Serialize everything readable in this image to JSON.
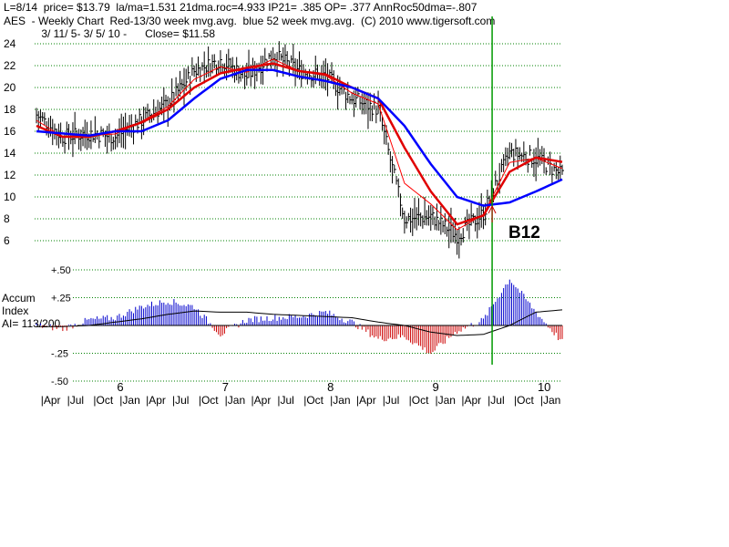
{
  "header": {
    "line1": "L=8/14  price= $13.79  la/ma=1.531 21dma.roc=4.933 IP21= .385 OP= .377 AnnRoc50dma=-.807",
    "line2": "AES  - Weekly Chart  Red-13/30 week mvg.avg.  blue 52 week mvg.avg.  (C) 2010 www.tigersoft.com",
    "line3": " 3/ 11/ 5- 3/ 5/ 10 -      Close= $11.58"
  },
  "side_label": {
    "line1": "Accum",
    "line2": "Index",
    "line3": "AI= 113/200"
  },
  "signal_label": "B12",
  "colors": {
    "price_bars": "#000000",
    "ma13": "#ff0000",
    "ma30": "#e00000",
    "ma52": "#0000ff",
    "grid": "#008000",
    "signal_line": "#009900",
    "accum_pos": "#0000cc",
    "accum_neg": "#cc0000",
    "accum_ma": "#000000"
  },
  "chart_data": [
    {
      "type": "line",
      "subtype": "ohlc-weekly",
      "y_tick_labels": [
        "24",
        "22",
        "20",
        "18",
        "16",
        "14",
        "12",
        "10",
        "8",
        "6"
      ],
      "x_year_labels": [
        "6",
        "7",
        "8",
        "9",
        "10"
      ],
      "x_month_labels": [
        "|Apr",
        "|Jul",
        "|Oct",
        "|Jan",
        "|Apr",
        "|Jul",
        "|Oct",
        "|Jan",
        "|Apr",
        "|Jul",
        "|Oct",
        "|Jan",
        "|Apr",
        "|Jul",
        "|Oct",
        "|Jan",
        "|Apr",
        "|Jul",
        "|Oct",
        "|Jan"
      ],
      "ylim": [
        5,
        24.5
      ],
      "grid": true,
      "x_months_since_mar2005": [
        0,
        3,
        6,
        9,
        12,
        15,
        18,
        21,
        24,
        27,
        30,
        33,
        36,
        39,
        42,
        45,
        48,
        51,
        54,
        57,
        60
      ],
      "price_close": [
        17.5,
        15.5,
        15.8,
        15.5,
        17.0,
        18.5,
        21.5,
        22.5,
        21.0,
        23.0,
        21.5,
        21.0,
        19.0,
        18.0,
        8.0,
        8.2,
        6.5,
        8.5,
        14.0,
        13.5,
        12.0
      ],
      "series": [
        {
          "name": "Red-13/30 week mvg.avg.",
          "values": [
            16.5,
            15.5,
            15.5,
            16.0,
            16.8,
            18.0,
            20.0,
            21.3,
            21.8,
            22.2,
            21.5,
            21.2,
            20.0,
            19.0,
            14.5,
            10.5,
            7.5,
            8.3,
            12.3,
            13.6,
            13.2
          ]
        },
        {
          "name": "blue 52 week mvg.avg.",
          "values": [
            16.0,
            15.8,
            15.6,
            16.0,
            16.0,
            17.0,
            19.0,
            20.8,
            21.6,
            21.6,
            21.0,
            20.6,
            20.0,
            19.0,
            16.5,
            13.0,
            10.0,
            9.2,
            9.5,
            10.5,
            11.6
          ]
        }
      ],
      "annotation": {
        "label": "B12",
        "x_month": 52
      }
    },
    {
      "type": "bar",
      "title": "Accum Index",
      "y_tick_labels": [
        "+.50",
        "+.25",
        "-.25",
        "-.50"
      ],
      "ylim": [
        -0.5,
        0.5
      ],
      "x_months_since_mar2005": [
        0,
        3,
        6,
        9,
        12,
        15,
        18,
        21,
        24,
        27,
        30,
        33,
        36,
        39,
        42,
        45,
        48,
        51,
        54,
        57,
        60
      ],
      "values": [
        0.0,
        -0.03,
        0.05,
        0.07,
        0.17,
        0.22,
        0.17,
        -0.08,
        0.05,
        0.07,
        0.08,
        0.12,
        0.03,
        -0.12,
        -0.1,
        -0.25,
        -0.05,
        0.05,
        0.42,
        0.12,
        -0.15
      ],
      "series": [
        {
          "name": "",
          "values": [
            -0.01,
            -0.01,
            0.0,
            0.03,
            0.06,
            0.1,
            0.13,
            0.12,
            0.12,
            0.1,
            0.09,
            0.08,
            0.07,
            0.03,
            0.0,
            -0.06,
            -0.09,
            -0.08,
            0.0,
            0.12,
            0.14
          ]
        }
      ]
    }
  ]
}
